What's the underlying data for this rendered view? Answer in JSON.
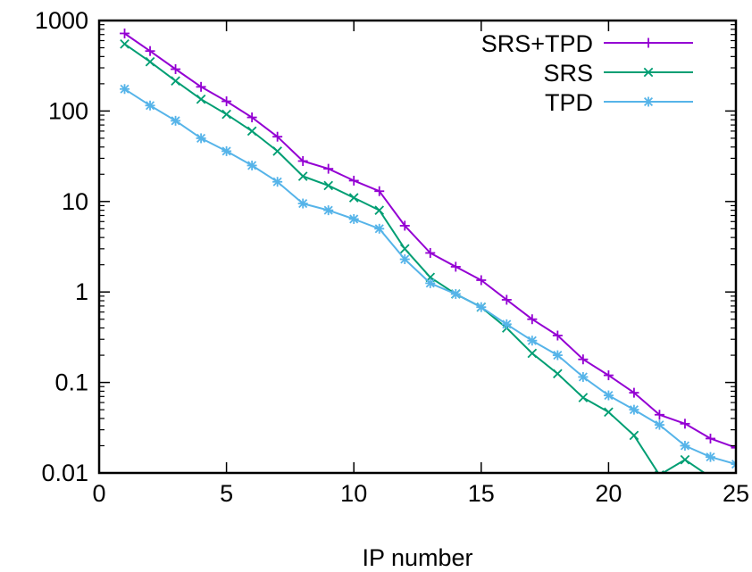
{
  "chart_data": {
    "type": "line",
    "xlabel": "IP number",
    "ylabel": "",
    "xlim": [
      0,
      25
    ],
    "ylim": [
      0.01,
      1000
    ],
    "yscale": "log",
    "xticks": [
      0,
      5,
      10,
      15,
      20,
      25
    ],
    "xtick_labels": [
      "0",
      "5",
      "10",
      "15",
      "20",
      "25"
    ],
    "yticks": [
      0.01,
      0.1,
      1,
      10,
      100,
      1000
    ],
    "ytick_labels": [
      "0.01",
      "0.1",
      "1",
      "10",
      "100",
      "1000"
    ],
    "grid": false,
    "legend": "top-right",
    "x": [
      1,
      2,
      3,
      4,
      5,
      6,
      7,
      8,
      9,
      10,
      11,
      12,
      13,
      14,
      15,
      16,
      17,
      18,
      19,
      20,
      21,
      22,
      23,
      24,
      25
    ],
    "series": [
      {
        "name": "SRS+TPD",
        "color": "#9400d3",
        "marker": "plus",
        "values": [
          720,
          460,
          290,
          185,
          128,
          85,
          52,
          28,
          23,
          17,
          13,
          5.4,
          2.7,
          1.9,
          1.35,
          0.82,
          0.5,
          0.33,
          0.18,
          0.12,
          0.077,
          0.044,
          0.035,
          0.024,
          0.019
        ]
      },
      {
        "name": "SRS",
        "color": "#009e73",
        "marker": "cross",
        "values": [
          550,
          350,
          215,
          135,
          92,
          60,
          36,
          19,
          15,
          11,
          8,
          3,
          1.45,
          0.95,
          0.68,
          0.4,
          0.21,
          0.125,
          0.068,
          0.047,
          0.026,
          0.0095,
          0.014,
          0.009,
          0.009
        ]
      },
      {
        "name": "TPD",
        "color": "#56b4e9",
        "marker": "star",
        "values": [
          175,
          115,
          78,
          50,
          36,
          25,
          16.5,
          9.5,
          8,
          6.4,
          5,
          2.3,
          1.25,
          0.95,
          0.68,
          0.44,
          0.29,
          0.2,
          0.115,
          0.072,
          0.05,
          0.034,
          0.02,
          0.015,
          0.0125
        ]
      }
    ]
  }
}
